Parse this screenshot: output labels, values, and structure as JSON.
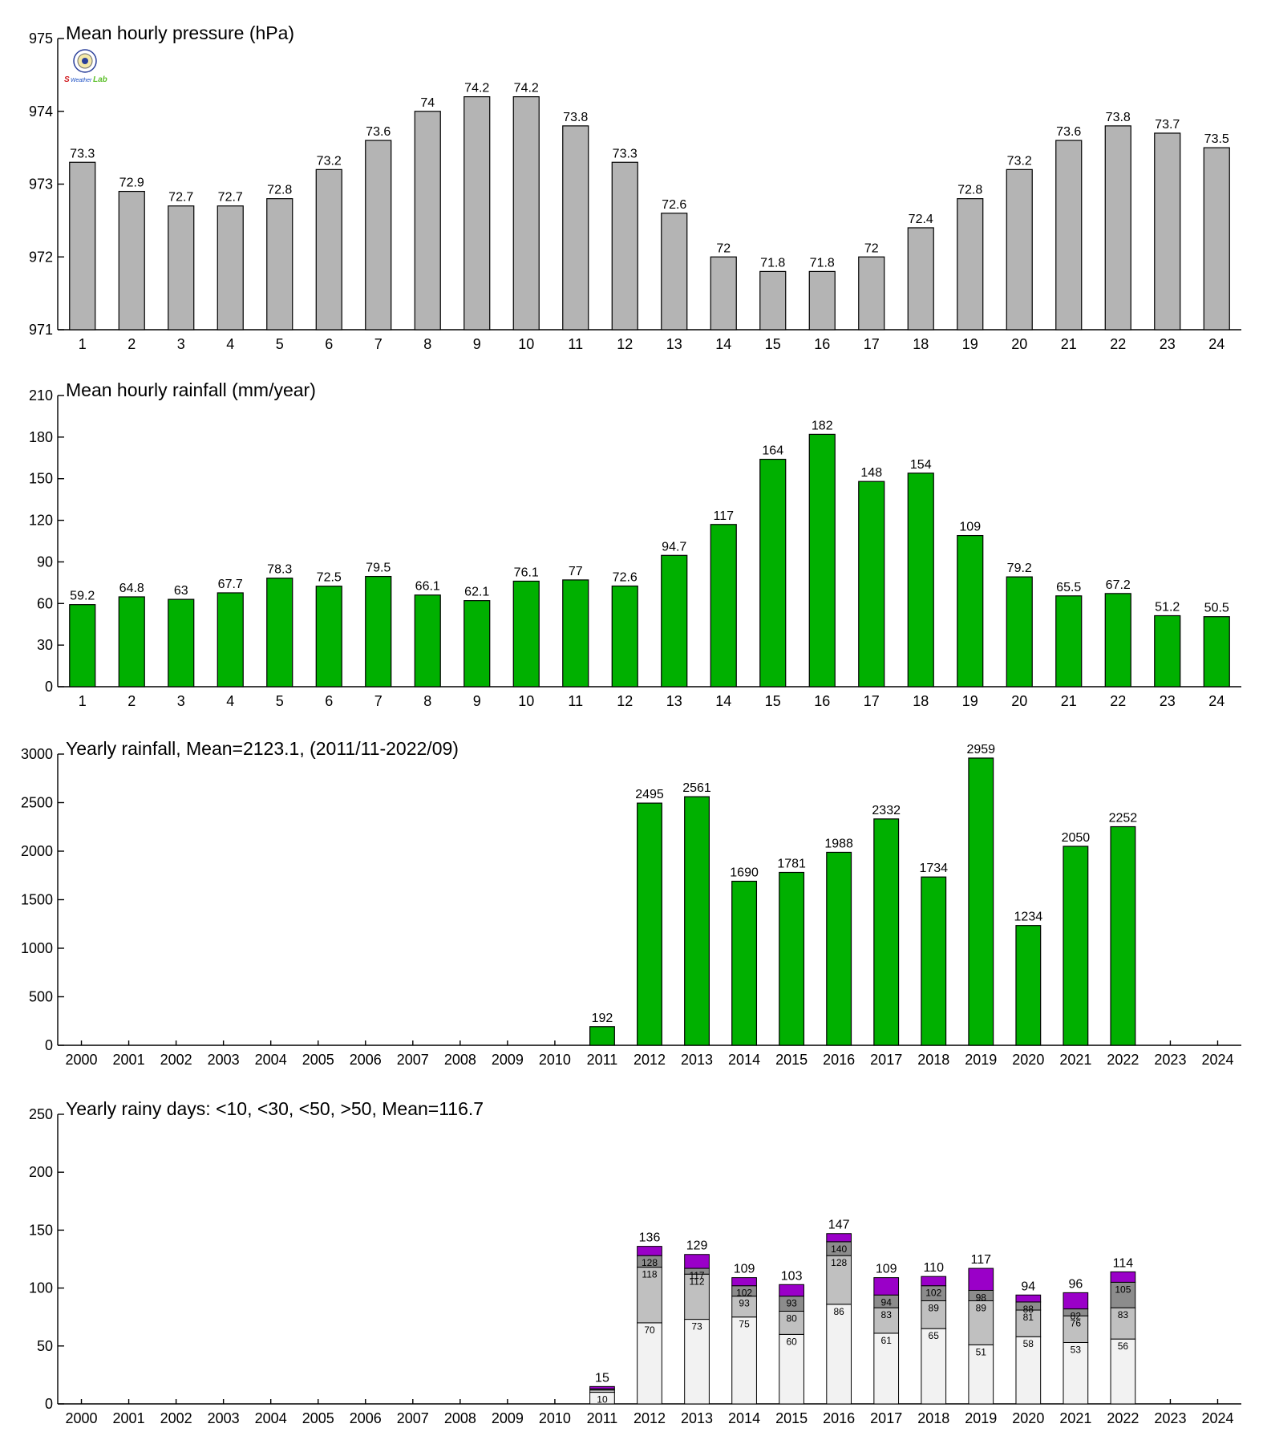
{
  "logo": {
    "text": "SeWeatherLab",
    "colors": {
      "s": "#d0161b",
      "weather": "#1b4fc4",
      "lab": "#5cbf2a"
    }
  },
  "chart_data": [
    {
      "type": "bar",
      "title": "Mean hourly pressure (hPa)",
      "categories": [
        "1",
        "2",
        "3",
        "4",
        "5",
        "6",
        "7",
        "8",
        "9",
        "10",
        "11",
        "12",
        "13",
        "14",
        "15",
        "16",
        "17",
        "18",
        "19",
        "20",
        "21",
        "22",
        "23",
        "24"
      ],
      "values": [
        973.3,
        972.9,
        972.7,
        972.7,
        972.8,
        973.2,
        973.6,
        974,
        974.2,
        974.2,
        973.8,
        973.3,
        972.6,
        972,
        971.8,
        971.8,
        972,
        972.4,
        972.8,
        973.2,
        973.6,
        973.8,
        973.7,
        973.5
      ],
      "labels": [
        "73.3",
        "72.9",
        "72.7",
        "72.7",
        "72.8",
        "73.2",
        "73.6",
        "74",
        "74.2",
        "74.2",
        "73.8",
        "73.3",
        "72.6",
        "72",
        "71.8",
        "71.8",
        "72",
        "72.4",
        "72.8",
        "73.2",
        "73.6",
        "73.8",
        "73.7",
        "73.5"
      ],
      "ylim": [
        971,
        975
      ],
      "yticks": [
        971,
        972,
        973,
        974,
        975
      ],
      "color": "#b4b4b4"
    },
    {
      "type": "bar",
      "title": "Mean hourly rainfall (mm/year)",
      "categories": [
        "1",
        "2",
        "3",
        "4",
        "5",
        "6",
        "7",
        "8",
        "9",
        "10",
        "11",
        "12",
        "13",
        "14",
        "15",
        "16",
        "17",
        "18",
        "19",
        "20",
        "21",
        "22",
        "23",
        "24"
      ],
      "values": [
        59.2,
        64.8,
        63,
        67.7,
        78.3,
        72.5,
        79.5,
        66.1,
        62.1,
        76.1,
        77,
        72.6,
        94.7,
        117,
        164,
        182,
        148,
        154,
        109,
        79.2,
        65.5,
        67.2,
        51.2,
        50.5
      ],
      "labels": [
        "59.2",
        "64.8",
        "63",
        "67.7",
        "78.3",
        "72.5",
        "79.5",
        "66.1",
        "62.1",
        "76.1",
        "77",
        "72.6",
        "94.7",
        "117",
        "164",
        "182",
        "148",
        "154",
        "109",
        "79.2",
        "65.5",
        "67.2",
        "51.2",
        "50.5"
      ],
      "ylim": [
        0,
        210
      ],
      "yticks": [
        0,
        30,
        60,
        90,
        120,
        150,
        180,
        210
      ],
      "color": "#00b000"
    },
    {
      "type": "bar",
      "title": "Yearly rainfall, Mean=2123.1, (2011/11-2022/09)",
      "categories": [
        "2000",
        "2001",
        "2002",
        "2003",
        "2004",
        "2005",
        "2006",
        "2007",
        "2008",
        "2009",
        "2010",
        "2011",
        "2012",
        "2013",
        "2014",
        "2015",
        "2016",
        "2017",
        "2018",
        "2019",
        "2020",
        "2021",
        "2022",
        "2023",
        "2024"
      ],
      "values": [
        null,
        null,
        null,
        null,
        null,
        null,
        null,
        null,
        null,
        null,
        null,
        192,
        2495,
        2561,
        1690,
        1781,
        1988,
        2332,
        1734,
        2959,
        1234,
        2050,
        2252,
        null,
        null
      ],
      "labels": [
        "",
        "",
        "",
        "",
        "",
        "",
        "",
        "",
        "",
        "",
        "",
        "192",
        "2495",
        "2561",
        "1690",
        "1781",
        "1988",
        "2332",
        "1734",
        "2959",
        "1234",
        "2050",
        "2252",
        "",
        ""
      ],
      "ylim": [
        0,
        3000
      ],
      "yticks": [
        0,
        500,
        1000,
        1500,
        2000,
        2500,
        3000
      ],
      "color": "#00b000"
    },
    {
      "type": "stacked-bar",
      "title": "Yearly rainy days: <10, <30, <50, >50, Mean=116.7",
      "categories": [
        "2000",
        "2001",
        "2002",
        "2003",
        "2004",
        "2005",
        "2006",
        "2007",
        "2008",
        "2009",
        "2010",
        "2011",
        "2012",
        "2013",
        "2014",
        "2015",
        "2016",
        "2017",
        "2018",
        "2019",
        "2020",
        "2021",
        "2022",
        "2023",
        "2024"
      ],
      "ylim": [
        0,
        250
      ],
      "yticks": [
        0,
        50,
        100,
        150,
        200,
        250
      ],
      "series_colors": [
        "#f2f2f2",
        "#c0c0c0",
        "#8c8c8c",
        "#9a00c8"
      ],
      "years": [
        {
          "year": "2011",
          "cum": [
            10,
            12,
            13,
            15
          ],
          "labels": [
            "10",
            "",
            "",
            ""
          ],
          "total": "15"
        },
        {
          "year": "2012",
          "cum": [
            70,
            118,
            128,
            136
          ],
          "labels": [
            "70",
            "118",
            "128",
            ""
          ],
          "total": "136"
        },
        {
          "year": "2013",
          "cum": [
            73,
            112,
            117,
            129
          ],
          "labels": [
            "73",
            "112",
            "117",
            ""
          ],
          "total": "129"
        },
        {
          "year": "2014",
          "cum": [
            75,
            93,
            102,
            109
          ],
          "labels": [
            "75",
            "93",
            "102",
            ""
          ],
          "total": "109"
        },
        {
          "year": "2015",
          "cum": [
            60,
            80,
            93,
            103
          ],
          "labels": [
            "60",
            "80",
            "93",
            ""
          ],
          "total": "103"
        },
        {
          "year": "2016",
          "cum": [
            86,
            128,
            140,
            147
          ],
          "labels": [
            "86",
            "128",
            "140",
            ""
          ],
          "total": "147"
        },
        {
          "year": "2017",
          "cum": [
            61,
            83,
            94,
            109
          ],
          "labels": [
            "61",
            "83",
            "94",
            ""
          ],
          "total": "109"
        },
        {
          "year": "2018",
          "cum": [
            65,
            89,
            102,
            110
          ],
          "labels": [
            "65",
            "89",
            "102",
            ""
          ],
          "total": "110"
        },
        {
          "year": "2019",
          "cum": [
            51,
            89,
            98,
            117
          ],
          "labels": [
            "51",
            "89",
            "98",
            ""
          ],
          "total": "117"
        },
        {
          "year": "2020",
          "cum": [
            58,
            81,
            88,
            94
          ],
          "labels": [
            "58",
            "81",
            "88",
            ""
          ],
          "total": "94"
        },
        {
          "year": "2021",
          "cum": [
            53,
            76,
            82,
            96
          ],
          "labels": [
            "53",
            "76",
            "82",
            ""
          ],
          "total": "96"
        },
        {
          "year": "2022",
          "cum": [
            56,
            83,
            105,
            114
          ],
          "labels": [
            "56",
            "83",
            "105",
            ""
          ],
          "total": "114"
        }
      ]
    }
  ]
}
